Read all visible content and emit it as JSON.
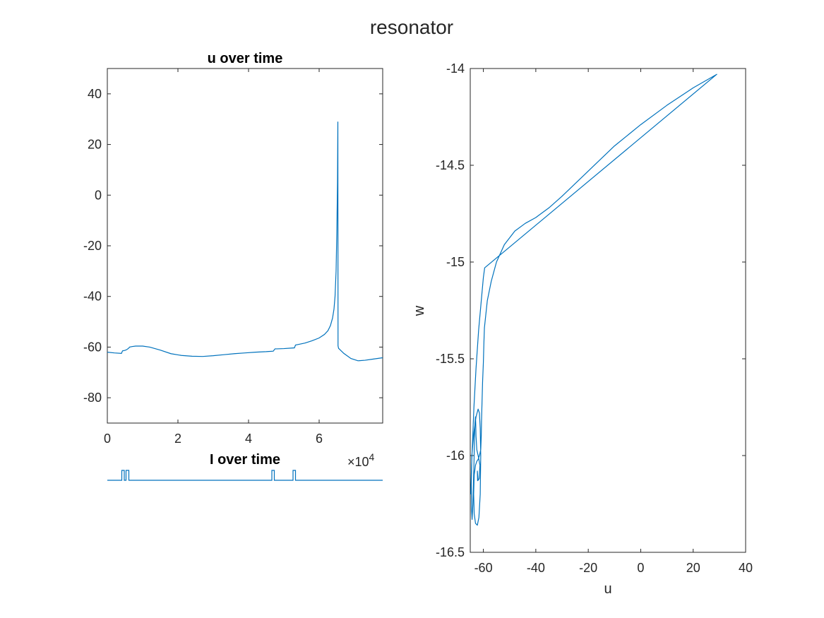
{
  "figure": {
    "title": "resonator",
    "exponent_label": "×10",
    "exponent_power": "4"
  },
  "colors": {
    "line": "#0072BD",
    "axis": "#262626",
    "background": "#ffffff"
  },
  "chart_data": [
    {
      "type": "line",
      "title": "u over time",
      "xlabel": "",
      "ylabel": "",
      "xlim": [
        0,
        78000
      ],
      "ylim": [
        -90,
        50
      ],
      "xticks": [
        0,
        20000,
        40000,
        60000
      ],
      "xtick_labels": [
        "0",
        "2",
        "4",
        "6"
      ],
      "yticks": [
        -80,
        -60,
        -40,
        -20,
        0,
        20,
        40
      ],
      "ytick_labels": [
        "-80",
        "-60",
        "-40",
        "-20",
        "0",
        "20",
        "40"
      ],
      "grid": false,
      "series": [
        {
          "x": [
            0,
            2000,
            4000,
            4300,
            5000,
            5500,
            6000,
            6300,
            7000,
            8000,
            10000,
            12000,
            15000,
            18000,
            21000,
            24000,
            27000,
            30000,
            33000,
            36000,
            39000,
            42000,
            45000,
            47000,
            47500,
            48000,
            50000,
            52000,
            53000,
            53300,
            54000,
            56000,
            58000,
            60000,
            61500,
            62500,
            63200,
            63800,
            64200,
            64500,
            64800,
            65000,
            65200,
            65300,
            65350,
            65500,
            67000,
            69000,
            71000,
            73000,
            75000,
            78000
          ],
          "y": [
            -62,
            -62.3,
            -62.5,
            -61.5,
            -61.3,
            -61,
            -60.5,
            -60,
            -59.8,
            -59.6,
            -59.6,
            -60,
            -61.2,
            -62.6,
            -63.3,
            -63.6,
            -63.7,
            -63.4,
            -63,
            -62.6,
            -62.3,
            -62,
            -61.8,
            -61.6,
            -60.7,
            -60.7,
            -60.6,
            -60.4,
            -60.3,
            -59.2,
            -59,
            -58.4,
            -57.5,
            -56.4,
            -55,
            -53.5,
            -51.5,
            -48.5,
            -45,
            -40,
            -30,
            -15,
            5,
            29,
            -59.5,
            -60.5,
            -62.5,
            -64.5,
            -65.4,
            -65.2,
            -64.8,
            -64.2
          ]
        }
      ]
    },
    {
      "type": "line",
      "title": "I over time",
      "xlabel": "",
      "ylabel": "",
      "xlim": [
        0,
        78000
      ],
      "grid": false,
      "series": [
        {
          "x": [
            0,
            4100,
            4100,
            4800,
            4800,
            5300,
            5300,
            6100,
            6100,
            46600,
            46600,
            47300,
            47300,
            52600,
            52600,
            53300,
            53300,
            78000
          ],
          "y": [
            0,
            0,
            1,
            1,
            0,
            0,
            1,
            1,
            0,
            0,
            1,
            1,
            0,
            0,
            1,
            1,
            0,
            0
          ]
        }
      ]
    },
    {
      "type": "line",
      "title": "",
      "xlabel": "u",
      "ylabel": "w",
      "xlim": [
        -65,
        40
      ],
      "ylim": [
        -16.5,
        -14
      ],
      "xticks": [
        -60,
        -40,
        -20,
        0,
        20,
        40
      ],
      "xtick_labels": [
        "-60",
        "-40",
        "-20",
        "0",
        "20",
        "40"
      ],
      "yticks": [
        -16.5,
        -16,
        -15.5,
        -15,
        -14.5,
        -14
      ],
      "ytick_labels": [
        "-16.5",
        "-16",
        "-15.5",
        "-15",
        "-14.5",
        "-14"
      ],
      "grid": false,
      "series": [
        {
          "x": [
            -62,
            -62.3,
            -62.2,
            -61.6,
            -61.3,
            -61.7,
            -62,
            -62.5,
            -62.8,
            -62.9,
            -63.0,
            -63.2,
            -63.4,
            -63.6,
            -64.0,
            -64.3,
            -64.5,
            -64.6,
            -64.4,
            -63.6,
            -62.8,
            -62,
            -61.5,
            -61.2,
            -61.0,
            -61.2,
            -61.7,
            -62.3,
            -63,
            -63.5,
            -63.7,
            -63.5,
            -63.0,
            -62.5,
            -62.0,
            -61.5,
            -61.0,
            -60.8,
            -60.7,
            -60.5,
            -60.3,
            -60.0,
            -59.8,
            -59.6,
            -58.5,
            -57,
            -55,
            -52,
            -48,
            -44,
            -40,
            -35,
            -30,
            -20,
            -10,
            0,
            10,
            20,
            29,
            -59.5,
            -60.0,
            -60.8,
            -61.8,
            -62.8,
            -63.6,
            -64.1,
            -64.5,
            -64.8
          ],
          "y": [
            -16.13,
            -16.08,
            -16.13,
            -16.12,
            -16.05,
            -16.02,
            -16.0,
            -15.97,
            -15.9,
            -15.84,
            -15.8,
            -15.83,
            -15.92,
            -16.05,
            -16.25,
            -16.33,
            -16.28,
            -16.15,
            -16.0,
            -15.88,
            -15.8,
            -15.76,
            -15.78,
            -15.86,
            -16.0,
            -16.2,
            -16.32,
            -16.36,
            -16.35,
            -16.3,
            -16.2,
            -16.1,
            -16.05,
            -16.03,
            -16.02,
            -16.0,
            -15.97,
            -15.9,
            -15.82,
            -15.72,
            -15.62,
            -15.52,
            -15.42,
            -15.34,
            -15.2,
            -15.1,
            -15.0,
            -14.91,
            -14.84,
            -14.8,
            -14.77,
            -14.72,
            -14.66,
            -14.53,
            -14.4,
            -14.29,
            -14.19,
            -14.1,
            -14.03,
            -15.03,
            -15.08,
            -15.2,
            -15.35,
            -15.55,
            -15.75,
            -15.92,
            -16.05,
            -16.2
          ]
        }
      ]
    }
  ]
}
